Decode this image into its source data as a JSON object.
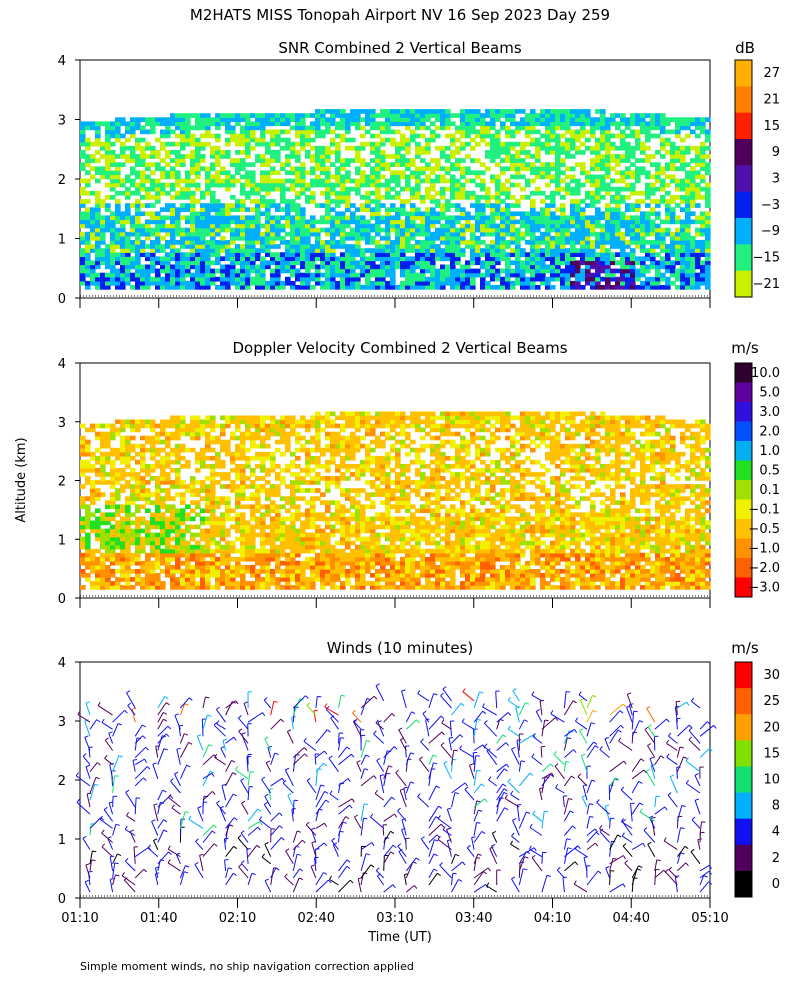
{
  "title": "M2HATS MISS Tonopah Airport NV  16 Sep 2023 Day 259",
  "footnote": "Simple moment winds, no ship navigation correction applied",
  "chart_data": [
    {
      "type": "heatmap",
      "title": "SNR Combined 2 Vertical Beams",
      "ylabel": "",
      "ylim": [
        0,
        4
      ],
      "yticks": [
        "0",
        "1",
        "2",
        "3",
        "4"
      ],
      "colorbar_unit": "dB",
      "colorbar_labels": [
        "27",
        "21",
        "15",
        "9",
        "3",
        "−3",
        "−9",
        "−15",
        "−21"
      ],
      "colorbar_colors": [
        "#ffb000",
        "#ff8000",
        "#ff2000",
        "#50005a",
        "#5010b0",
        "#0020f0",
        "#00b0ff",
        "#20f080",
        "#c8f000"
      ],
      "field": "snr"
    },
    {
      "type": "heatmap",
      "title": "Doppler Velocity Combined 2 Vertical Beams",
      "ylabel": "Altitude (km)",
      "ylim": [
        0,
        4
      ],
      "yticks": [
        "0",
        "1",
        "2",
        "3",
        "4"
      ],
      "colorbar_unit": "m/s",
      "colorbar_labels": [
        "10.0",
        "5.0",
        "3.0",
        "2.0",
        "1.0",
        "0.5",
        "0.1",
        "−0.1",
        "−0.5",
        "−1.0",
        "−2.0",
        "−3.0"
      ],
      "colorbar_colors": [
        "#300030",
        "#6000a0",
        "#3010e0",
        "#0050ff",
        "#00b0f0",
        "#20e020",
        "#a0e000",
        "#f0f000",
        "#ffc000",
        "#ff9000",
        "#ff6000",
        "#ff0000"
      ],
      "field": "velocity"
    },
    {
      "type": "scatter",
      "title": "Winds (10 minutes)",
      "ylabel": "",
      "ylim": [
        0,
        4
      ],
      "yticks": [
        "0",
        "1",
        "2",
        "3",
        "4"
      ],
      "xlabel": "Time (UT)",
      "xticks": [
        "01:10",
        "01:40",
        "02:10",
        "02:40",
        "03:10",
        "03:40",
        "04:10",
        "04:40",
        "05:10"
      ],
      "colorbar_unit": "m/s",
      "colorbar_labels": [
        "30",
        "25",
        "20",
        "15",
        "10",
        "8",
        "4",
        "2",
        "0"
      ],
      "colorbar_colors": [
        "#ff0000",
        "#ff6000",
        "#ffa000",
        "#80e000",
        "#10e070",
        "#00b0ff",
        "#1010f0",
        "#50005a",
        "#000000"
      ],
      "field": "winds"
    }
  ]
}
